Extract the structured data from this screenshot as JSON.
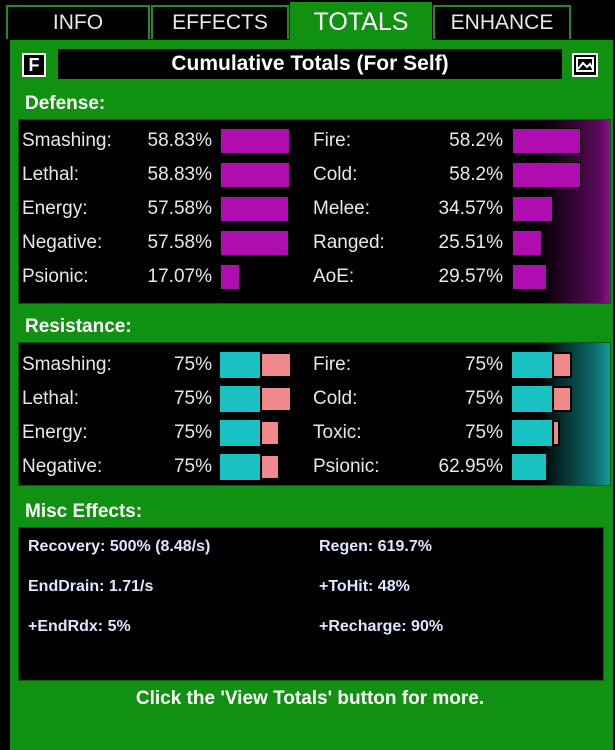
{
  "tabs": [
    "INFO",
    "EFFECTS",
    "TOTALS",
    "ENHANCE"
  ],
  "active_tab": "TOTALS",
  "header": {
    "f_label": "F",
    "title": "Cumulative Totals (For Self)"
  },
  "defense": {
    "label": "Defense:",
    "left": [
      {
        "label": "Smashing:",
        "value": "58.83%",
        "level": 0.5883
      },
      {
        "label": "Lethal:",
        "value": "58.83%",
        "level": 0.5883
      },
      {
        "label": "Energy:",
        "value": "57.58%",
        "level": 0.5758
      },
      {
        "label": "Negative:",
        "value": "57.58%",
        "level": 0.5758
      },
      {
        "label": "Psionic:",
        "value": "17.07%",
        "level": 0.1707
      }
    ],
    "right": [
      {
        "label": "Fire:",
        "value": "58.2%",
        "level": 0.582
      },
      {
        "label": "Cold:",
        "value": "58.2%",
        "level": 0.582
      },
      {
        "label": "Melee:",
        "value": "34.57%",
        "level": 0.3457
      },
      {
        "label": "Ranged:",
        "value": "25.51%",
        "level": 0.2551
      },
      {
        "label": "AoE:",
        "value": "29.57%",
        "level": 0.2957
      }
    ]
  },
  "resistance": {
    "label": "Resistance:",
    "left": [
      {
        "label": "Smashing:",
        "value": "75%",
        "base": 0.5,
        "cap": 0.9
      },
      {
        "label": "Lethal:",
        "value": "75%",
        "base": 0.5,
        "cap": 0.9
      },
      {
        "label": "Energy:",
        "value": "75%",
        "base": 0.5,
        "cap": 0.75
      },
      {
        "label": "Negative:",
        "value": "75%",
        "base": 0.5,
        "cap": 0.75
      }
    ],
    "right": [
      {
        "label": "Fire:",
        "value": "75%",
        "base": 0.5,
        "cap": 0.75
      },
      {
        "label": "Cold:",
        "value": "75%",
        "base": 0.5,
        "cap": 0.75
      },
      {
        "label": "Toxic:",
        "value": "75%",
        "base": 0.5,
        "cap": 0.6
      },
      {
        "label": "Psionic:",
        "value": "62.95%",
        "base": 0.42,
        "cap": 0.42
      }
    ]
  },
  "misc": {
    "label": "Misc Effects:",
    "items": [
      {
        "text": "Recovery: 500% (8.48/s)"
      },
      {
        "text": "Regen: 619.7%"
      },
      {
        "text": "EndDrain: 1.71/s"
      },
      {
        "text": "+ToHit: 48%"
      },
      {
        "text": "+EndRdx: 5%"
      },
      {
        "text": "+Recharge: 90%"
      }
    ]
  },
  "footer": "Click the 'View Totals' button for more.",
  "colors": {
    "panel_green": "#119111",
    "defense_bar": "#b00db0",
    "resist_teal": "#19c2c2",
    "resist_pink": "#f08a8a"
  }
}
